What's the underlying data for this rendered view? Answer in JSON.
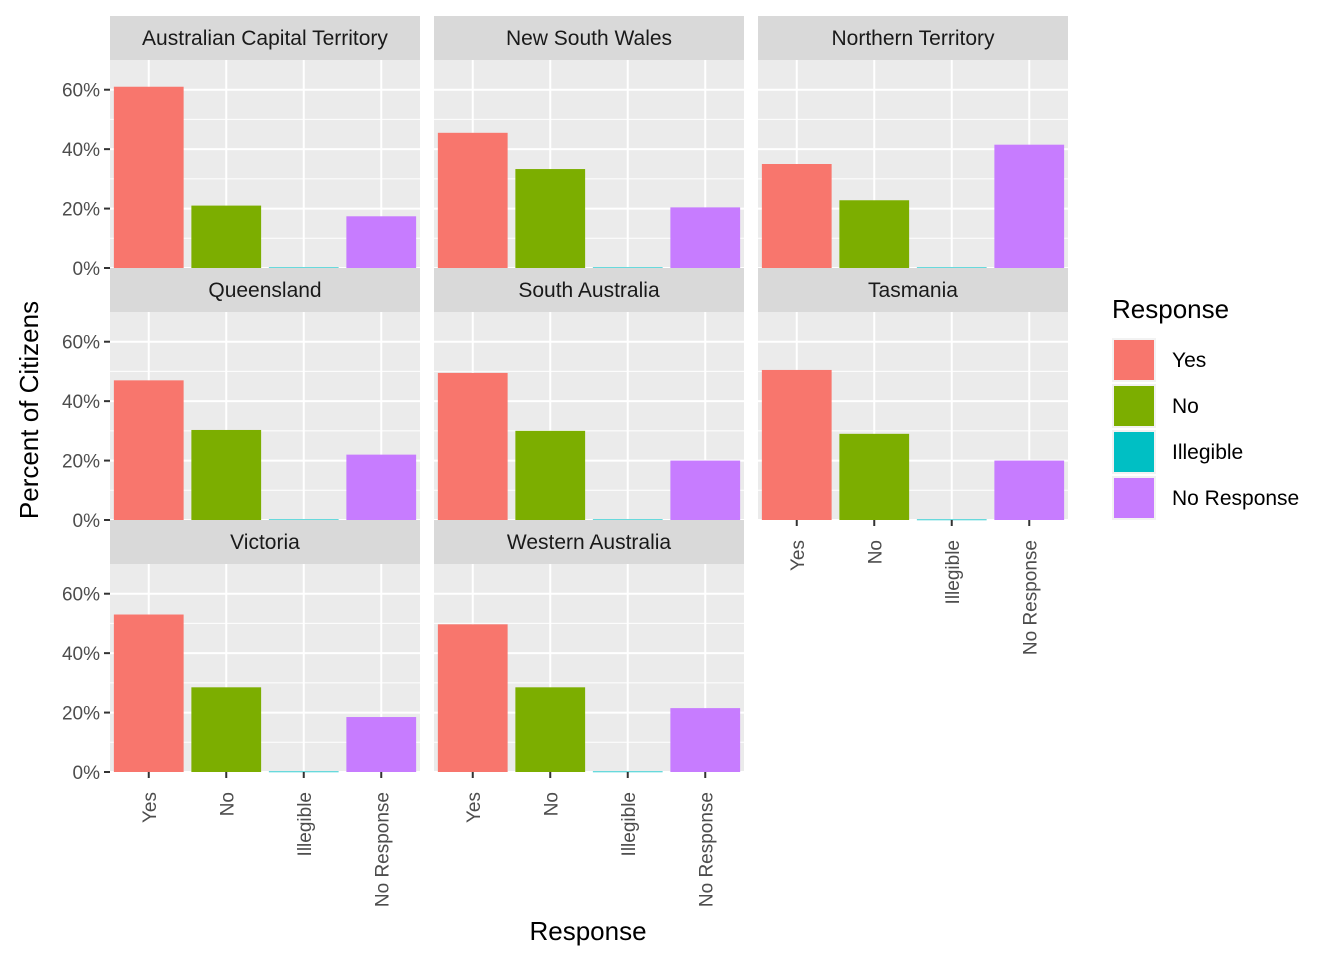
{
  "chart_data": {
    "type": "bar",
    "facet_layout": {
      "columns": 3,
      "rows": 3
    },
    "categories": [
      "Yes",
      "No",
      "Illegible",
      "No Response"
    ],
    "colors": [
      "#F8766D",
      "#7CAE00",
      "#00BFC4",
      "#C77CFF"
    ],
    "ylim": [
      0,
      70
    ],
    "yticks": [
      0,
      20,
      40,
      60
    ],
    "ytick_labels": [
      "0%",
      "20%",
      "40%",
      "60%"
    ],
    "xlabel": "Response",
    "ylabel": "Percent of Citizens",
    "legend": {
      "title": "Response",
      "position": "right",
      "entries": [
        "Yes",
        "No",
        "Illegible",
        "No Response"
      ]
    },
    "grid": true,
    "panels": [
      {
        "name": "Australian Capital Territory",
        "values": [
          61.0,
          21.0,
          0.2,
          17.4
        ]
      },
      {
        "name": "New South Wales",
        "values": [
          45.5,
          33.3,
          0.2,
          20.4
        ]
      },
      {
        "name": "Northern Territory",
        "values": [
          35.0,
          22.8,
          0.2,
          41.5
        ]
      },
      {
        "name": "Queensland",
        "values": [
          47.0,
          30.3,
          0.2,
          22.0
        ]
      },
      {
        "name": "South Australia",
        "values": [
          49.5,
          30.0,
          0.2,
          20.0
        ]
      },
      {
        "name": "Tasmania",
        "values": [
          50.5,
          29.0,
          0.2,
          20.0
        ]
      },
      {
        "name": "Victoria",
        "values": [
          53.0,
          28.5,
          0.2,
          18.5
        ]
      },
      {
        "name": "Western Australia",
        "values": [
          49.7,
          28.5,
          0.2,
          21.5
        ]
      }
    ]
  }
}
